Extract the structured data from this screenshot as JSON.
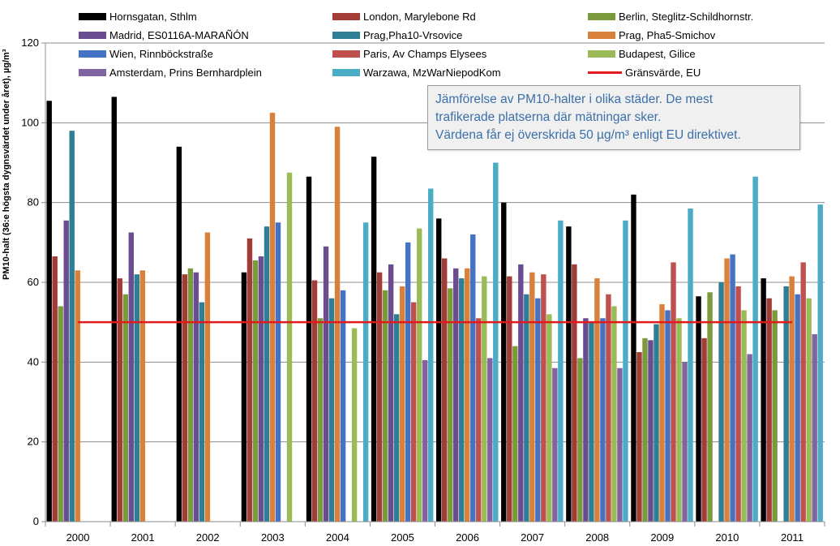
{
  "chart_data": {
    "type": "bar",
    "categories": [
      "2000",
      "2001",
      "2002",
      "2003",
      "2004",
      "2005",
      "2006",
      "2007",
      "2008",
      "2009",
      "2010",
      "2011"
    ],
    "ylabel": "PM10-halt (36:e högsta dygnsvärdet under året), µg/m³",
    "ylim": [
      0,
      120
    ],
    "yticks": [
      0,
      20,
      40,
      60,
      80,
      100,
      120
    ],
    "grid": true,
    "legend_position": "top",
    "series": [
      {
        "name": "Hornsgatan, Sthlm",
        "color": "#000000",
        "values": [
          105.5,
          106.5,
          94,
          62.5,
          86.5,
          91.5,
          76,
          80,
          74,
          82,
          56.5,
          61
        ]
      },
      {
        "name": "London, Marylebone Rd",
        "color": "#a33b36",
        "values": [
          66.5,
          61,
          62,
          71,
          60.5,
          62.5,
          66,
          61.5,
          64.5,
          42.5,
          46,
          56
        ]
      },
      {
        "name": "Berlin, Steglitz-Schildhornstr.",
        "color": "#7a9a3c",
        "values": [
          54,
          57,
          63.5,
          65.5,
          51,
          58,
          58.5,
          44,
          41,
          46,
          57.5,
          53
        ]
      },
      {
        "name": "Madrid, ES0116A-MARAÑÓN",
        "color": "#6a4c93",
        "values": [
          75.5,
          72.5,
          62.5,
          66.5,
          69,
          64.5,
          63.5,
          64.5,
          51,
          45.5,
          0,
          0
        ]
      },
      {
        "name": "Prag,Pha10-Vrsovice",
        "color": "#2e7f94",
        "values": [
          98,
          62,
          55,
          74,
          56,
          52,
          61,
          57,
          50,
          49.5,
          60,
          59
        ]
      },
      {
        "name": "Prag, Pha5-Smichov",
        "color": "#d9803a",
        "values": [
          63,
          63,
          72.5,
          102.5,
          99,
          59,
          63.5,
          62.5,
          61,
          54.5,
          66,
          61.5
        ]
      },
      {
        "name": "Wien, Rinnböckstraße",
        "color": "#4472c4",
        "values": [
          0,
          0,
          0,
          75,
          58,
          70,
          72,
          56,
          51,
          53,
          67,
          57
        ]
      },
      {
        "name": "Paris, Av Champs Elysees",
        "color": "#c0504d",
        "values": [
          0,
          0,
          0,
          0,
          0,
          55,
          51,
          62,
          57,
          65,
          59,
          65
        ]
      },
      {
        "name": "Budapest, Gilice",
        "color": "#9bbb59",
        "values": [
          0,
          0,
          0,
          87.5,
          48.5,
          73.5,
          61.5,
          52,
          54,
          51,
          53,
          56
        ]
      },
      {
        "name": "Amsterdam, Prins Bernhardplein",
        "color": "#8064a2",
        "values": [
          0,
          0,
          0,
          0,
          0,
          40.5,
          41,
          38.5,
          38.5,
          40,
          42,
          47
        ]
      },
      {
        "name": "Warzawa, MzWarNiepodKom",
        "color": "#4bacc6",
        "values": [
          0,
          0,
          0,
          0,
          75,
          83.5,
          90,
          75.5,
          75.5,
          78.5,
          86.5,
          79.5
        ]
      }
    ],
    "threshold": {
      "name": "Gränsvärde, EU",
      "color": "#e31a1c",
      "value": 50
    },
    "annotation": [
      "Jämförelse av PM10-halter i olika städer. De mest",
      "trafikerade platserna där mätningar sker.",
      "Värdena får ej överskrida 50 µg/m³ enligt EU direktivet."
    ]
  }
}
